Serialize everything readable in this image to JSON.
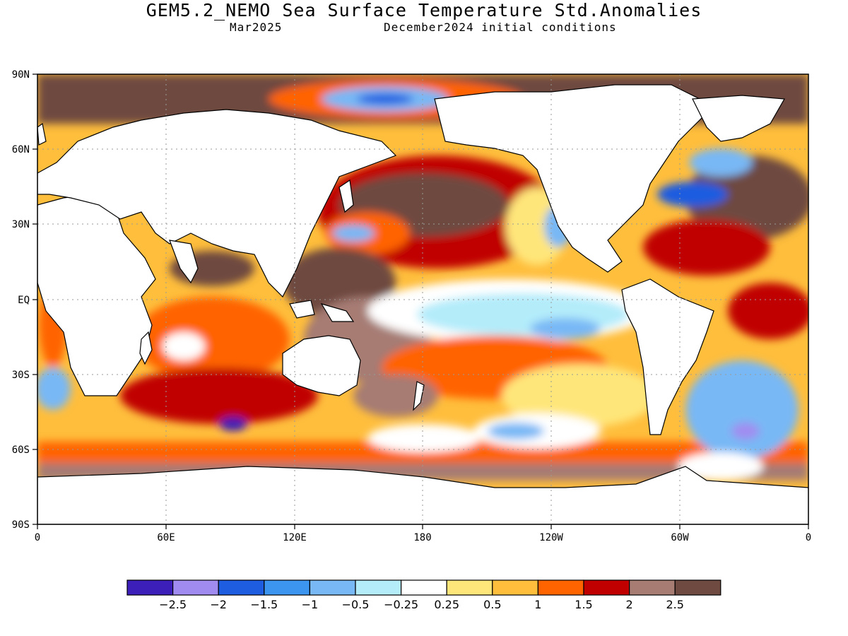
{
  "header": {
    "title": "GEM5.2_NEMO Sea Surface Temperature Std.Anomalies",
    "month": "Mar2025",
    "init": "December2024 initial conditions"
  },
  "map": {
    "lat_labels": [
      "90N",
      "60N",
      "30N",
      "EQ",
      "30S",
      "60S",
      "90S"
    ],
    "lon_labels": [
      "0",
      "60E",
      "120E",
      "180",
      "120W",
      "60W",
      "0"
    ],
    "gridlines": "dotted"
  },
  "legend": {
    "colors": [
      "#3b1fb8",
      "#a08cf0",
      "#1e5ce0",
      "#3c96f0",
      "#78b8f5",
      "#b4ecfa",
      "#ffffff",
      "#ffe67a",
      "#ffbe3c",
      "#ff6400",
      "#c00000",
      "#a67c73",
      "#6e4a40"
    ],
    "labels": [
      "−2.5",
      "−2",
      "−1.5",
      "−1",
      "−0.5",
      "−0.25",
      "0.25",
      "0.5",
      "1",
      "1.5",
      "2",
      "2.5"
    ]
  },
  "colors": {
    "land": "#ffffff",
    "coastline": "#000000"
  }
}
